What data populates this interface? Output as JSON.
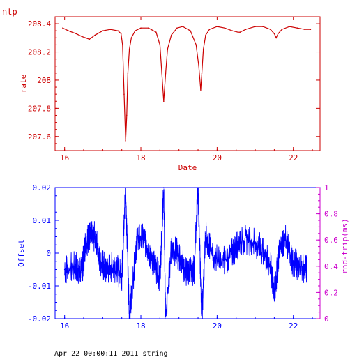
{
  "title": "ntp",
  "footer": "Apr 22 00:00:11 2011 string",
  "colors": {
    "top": "#cc0000",
    "bottom": "#0000ff",
    "right_axis": "#cc00cc"
  },
  "chart_data": [
    {
      "type": "line",
      "xlabel": "Date",
      "ylabel": "rate",
      "xlim": [
        15.75,
        22.7
      ],
      "ylim": [
        207.5,
        208.45
      ],
      "x_ticks": [
        "16",
        "18",
        "20",
        "22"
      ],
      "y_ticks": [
        "207.6",
        "207.8",
        "208",
        "208.2",
        "208.4"
      ],
      "series": [
        {
          "x": [
            15.95,
            16.1,
            16.3,
            16.45,
            16.55,
            16.65,
            16.8,
            17.0,
            17.2,
            17.4,
            17.48,
            17.52,
            17.56,
            17.6,
            17.63,
            17.66,
            17.7,
            17.75,
            17.85,
            18.0,
            18.2,
            18.4,
            18.5,
            18.55,
            18.6,
            18.65,
            18.7,
            18.8,
            18.95,
            19.1,
            19.3,
            19.45,
            19.52,
            19.57,
            19.6,
            19.64,
            19.7,
            19.8,
            20.0,
            20.2,
            20.4,
            20.55,
            20.6,
            20.75,
            21.0,
            21.2,
            21.4,
            21.5,
            21.55,
            21.6,
            21.7,
            21.9,
            22.1,
            22.3,
            22.45
          ],
          "y": [
            208.37,
            208.35,
            208.33,
            208.31,
            208.3,
            208.29,
            208.32,
            208.35,
            208.36,
            208.35,
            208.33,
            208.25,
            207.9,
            207.57,
            207.75,
            208.05,
            208.22,
            208.3,
            208.35,
            208.37,
            208.37,
            208.34,
            208.25,
            208.05,
            207.85,
            208.05,
            208.22,
            208.32,
            208.37,
            208.38,
            208.35,
            208.25,
            208.1,
            207.93,
            208.05,
            208.22,
            208.32,
            208.36,
            208.38,
            208.37,
            208.35,
            208.34,
            208.34,
            208.36,
            208.38,
            208.38,
            208.36,
            208.33,
            208.3,
            208.33,
            208.36,
            208.38,
            208.37,
            208.36,
            208.36
          ]
        }
      ]
    },
    {
      "type": "line",
      "xlabel": "",
      "ylabel": "Offset",
      "ylabel_right": "rnd-trip(ms)",
      "xlim": [
        15.75,
        22.7
      ],
      "ylim": [
        -0.02,
        0.02
      ],
      "ylim_right": [
        0,
        1
      ],
      "x_ticks": [
        "16",
        "18",
        "20",
        "22"
      ],
      "y_ticks": [
        "-0.02",
        "-0.01",
        "0",
        "0.01",
        "0.02"
      ],
      "y_ticks_right": [
        "0",
        "0.2",
        "0.4",
        "0.6",
        "0.8",
        "1"
      ],
      "series": [
        {
          "x": [
            16.0,
            16.3,
            16.45,
            16.55,
            16.65,
            16.8,
            16.95,
            17.1,
            17.3,
            17.5,
            17.6,
            17.7,
            17.9,
            18.1,
            18.3,
            18.5,
            18.6,
            18.65,
            18.8,
            19.0,
            19.2,
            19.4,
            19.5,
            19.6,
            19.7,
            19.85,
            20.1,
            20.4,
            20.6,
            20.9,
            21.2,
            21.4,
            21.5,
            21.55,
            21.65,
            21.8,
            22.0,
            22.2,
            22.35
          ],
          "y": [
            -0.005,
            -0.004,
            -0.006,
            0.003,
            0.005,
            0.005,
            -0.003,
            -0.005,
            -0.004,
            -0.007,
            0.02,
            -0.02,
            0.005,
            0.004,
            -0.002,
            -0.008,
            0.02,
            -0.02,
            0.002,
            -0.001,
            -0.006,
            -0.005,
            0.02,
            -0.02,
            0.006,
            0.0,
            -0.003,
            0.0,
            0.004,
            0.004,
            0.001,
            -0.004,
            -0.012,
            -0.008,
            0.003,
            0.004,
            -0.003,
            -0.004,
            -0.005
          ]
        }
      ]
    }
  ]
}
